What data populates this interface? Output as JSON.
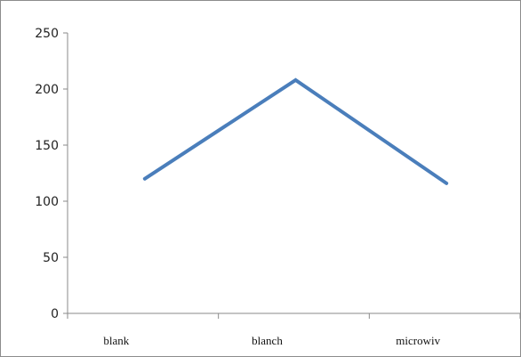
{
  "chart_data": {
    "type": "line",
    "categories": [
      "blank",
      "blanch",
      "microwiv"
    ],
    "series": [
      {
        "values": [
          120,
          208,
          116
        ],
        "color": "#4a7ebb"
      }
    ],
    "title": "",
    "xlabel": "",
    "ylabel": "",
    "ylim": [
      0,
      250
    ],
    "yticks": [
      0,
      50,
      100,
      150,
      200,
      250
    ],
    "grid": false,
    "legend": "none"
  }
}
